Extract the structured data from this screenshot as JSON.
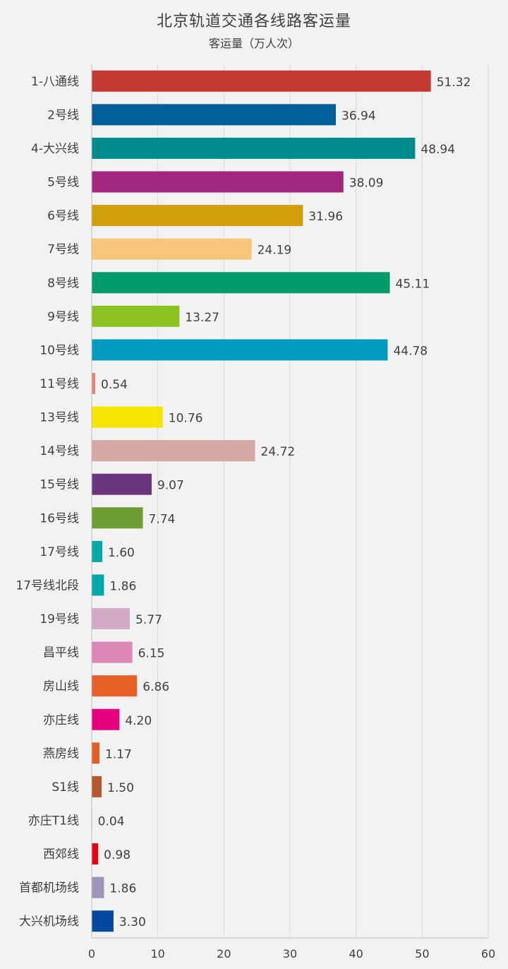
{
  "chart_data": {
    "type": "bar",
    "orientation": "horizontal",
    "title": "北京轨道交通各线路客运量",
    "subtitle": "客运量（万人次）",
    "xlabel": "",
    "ylabel": "",
    "xlim": [
      0,
      60
    ],
    "xticks": [
      0,
      10,
      20,
      30,
      40,
      50,
      60
    ],
    "grid": true,
    "legend": "none",
    "categories": [
      "1-八通线",
      "2号线",
      "4-大兴线",
      "5号线",
      "6号线",
      "7号线",
      "8号线",
      "9号线",
      "10号线",
      "11号线",
      "13号线",
      "14号线",
      "15号线",
      "16号线",
      "17号线",
      "17号线北段",
      "19号线",
      "昌平线",
      "房山线",
      "亦庄线",
      "燕房线",
      "S1线",
      "亦庄T1线",
      "西郊线",
      "首都机场线",
      "大兴机场线"
    ],
    "values": [
      51.32,
      36.94,
      48.94,
      38.09,
      31.96,
      24.19,
      45.11,
      13.27,
      44.78,
      0.54,
      10.76,
      24.72,
      9.07,
      7.74,
      1.6,
      1.86,
      5.77,
      6.15,
      6.86,
      4.2,
      1.17,
      1.5,
      0.04,
      0.98,
      1.86,
      3.3
    ],
    "value_labels": [
      "51.32",
      "36.94",
      "48.94",
      "38.09",
      "31.96",
      "24.19",
      "45.11",
      "13.27",
      "44.78",
      "0.54",
      "10.76",
      "24.72",
      "9.07",
      "7.74",
      "1.60",
      "1.86",
      "5.77",
      "6.15",
      "6.86",
      "4.20",
      "1.17",
      "1.50",
      "0.04",
      "0.98",
      "1.86",
      "3.30"
    ],
    "colors": [
      "#c23a32",
      "#035f9a",
      "#008c8c",
      "#a2267d",
      "#d29e0a",
      "#f7c67a",
      "#009b6b",
      "#8dc320",
      "#009bc0",
      "#e2877a",
      "#f6e500",
      "#d6a8a4",
      "#6b3580",
      "#6f9d35",
      "#00a9a9",
      "#00a9a9",
      "#d5aac7",
      "#dc87b8",
      "#e66127",
      "#e5007d",
      "#e46022",
      "#b6562b",
      "#e2a6c0",
      "#e40214",
      "#a095b8",
      "#0048a0"
    ]
  }
}
